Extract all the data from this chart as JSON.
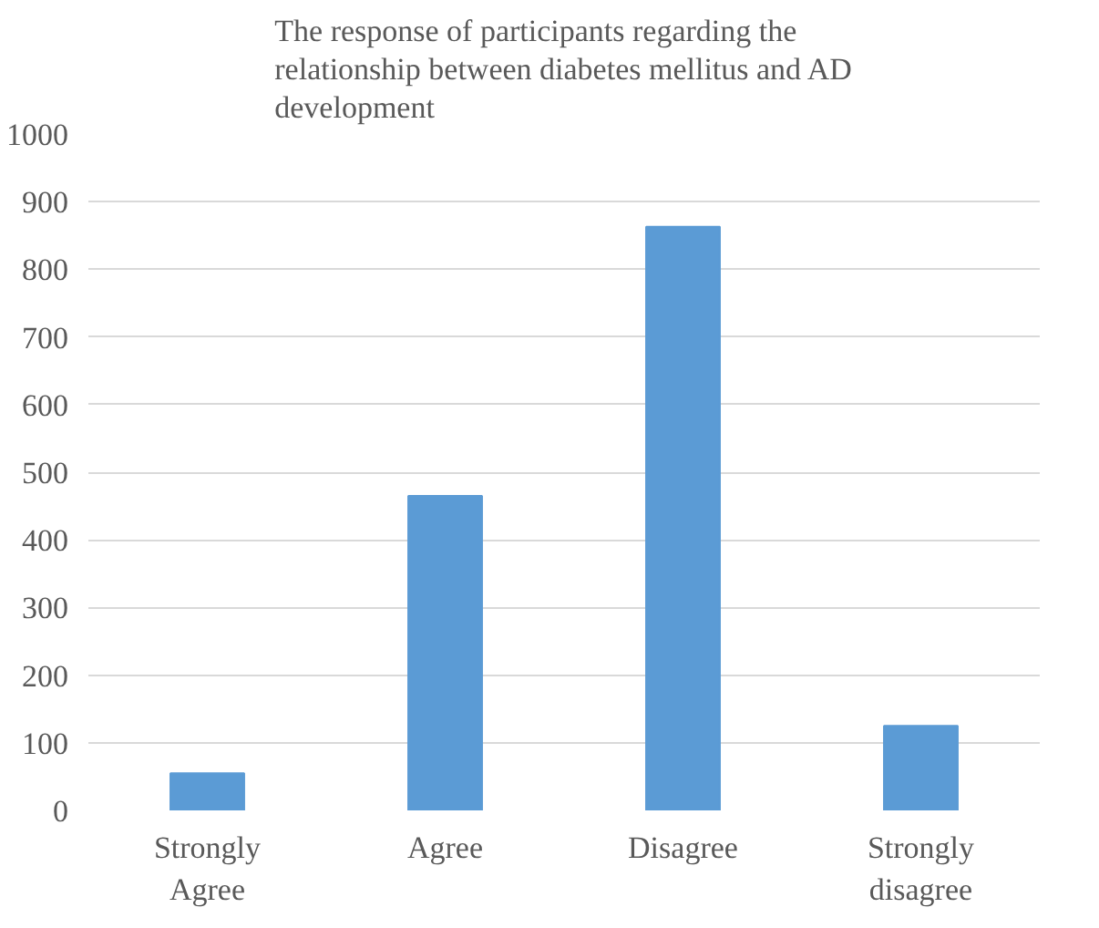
{
  "chart_data": {
    "type": "bar",
    "title": "The response of participants regarding the relationship between diabetes mellitus and AD development",
    "categories": [
      "Strongly Agree",
      "Agree",
      "Disagree",
      "Strongly disagree"
    ],
    "values": [
      55,
      465,
      863,
      125
    ],
    "color": "#5b9bd5",
    "ylim": [
      0,
      1000
    ],
    "yticks": [
      0,
      100,
      200,
      300,
      400,
      500,
      600,
      700,
      800,
      900,
      1000
    ],
    "grid": "y"
  }
}
